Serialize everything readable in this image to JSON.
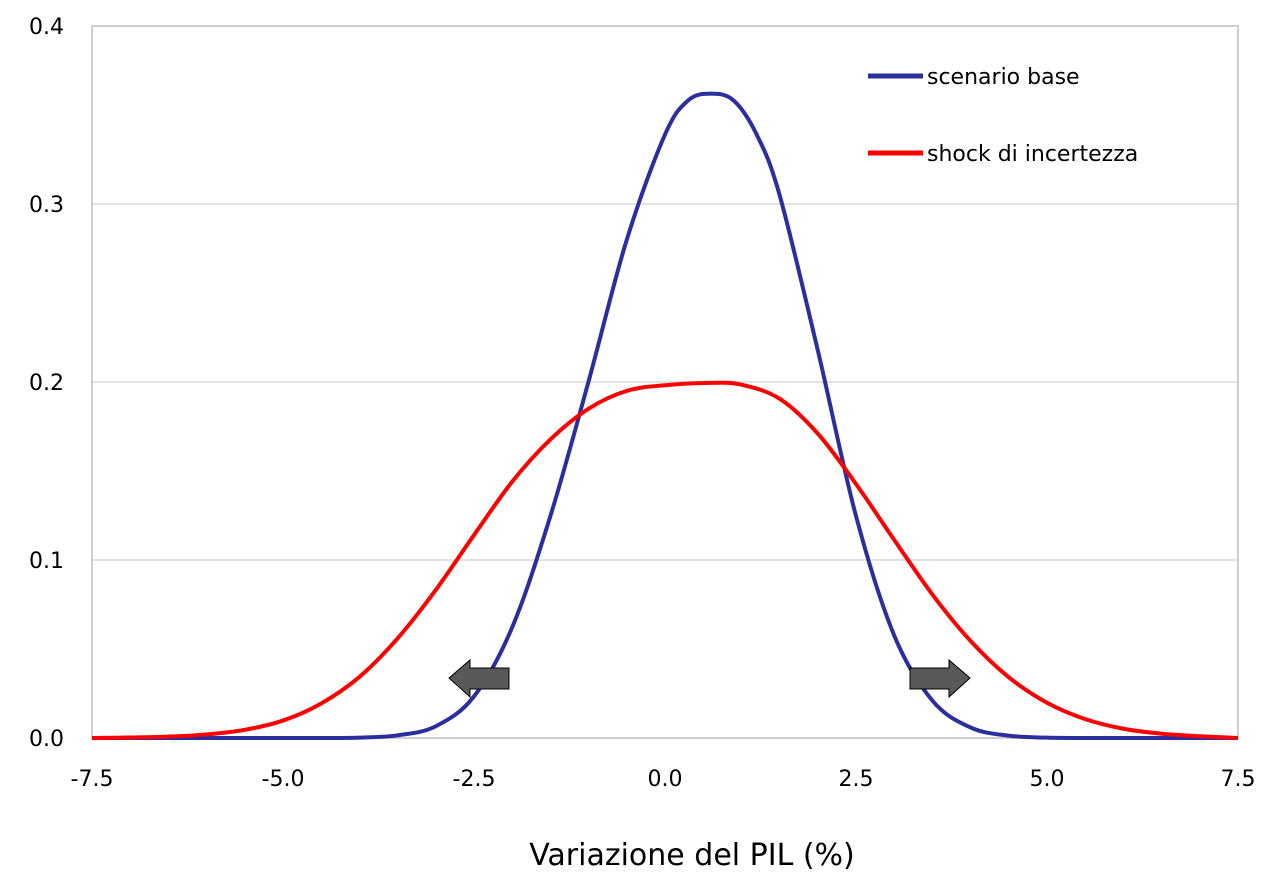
{
  "chart_data": {
    "type": "line",
    "xlabel": "Variazione del PIL (%)",
    "ylabel": "",
    "xlim": [
      -7.5,
      7.5
    ],
    "ylim": [
      0.0,
      0.4
    ],
    "x_ticks": [
      "-7.5",
      "-5.0",
      "-2.5",
      "0.0",
      "2.5",
      "5.0",
      "7.5"
    ],
    "y_ticks": [
      "0.0",
      "0.1",
      "0.2",
      "0.3",
      "0.4"
    ],
    "grid": "horizontal",
    "legend_position": "top-right",
    "series": [
      {
        "name": "scenario base",
        "color": "#2b2f9e",
        "x": [
          -7.5,
          -7.0,
          -6.5,
          -6.0,
          -5.5,
          -5.0,
          -4.5,
          -4.0,
          -3.5,
          -3.0,
          -2.5,
          -2.0,
          -1.5,
          -1.0,
          -0.5,
          0.0,
          0.3,
          0.6,
          0.9,
          1.2,
          1.5,
          2.0,
          2.5,
          3.0,
          3.5,
          4.0,
          4.5,
          5.0,
          5.5,
          6.0,
          6.5,
          7.0,
          7.5
        ],
        "y": [
          0.0,
          0.0,
          0.0,
          0.0,
          0.0,
          0.0,
          0.0,
          0.0002,
          0.0015,
          0.0066,
          0.0234,
          0.0622,
          0.1247,
          0.2004,
          0.28,
          0.339,
          0.3581,
          0.362,
          0.3581,
          0.339,
          0.305,
          0.2178,
          0.1247,
          0.0576,
          0.021,
          0.0059,
          0.0013,
          0.0002,
          0.0,
          0.0,
          0.0,
          0.0,
          0.0
        ]
      },
      {
        "name": "shock di incertezza",
        "color": "#ff0000",
        "x": [
          -7.5,
          -7.0,
          -6.5,
          -6.0,
          -5.5,
          -5.0,
          -4.5,
          -4.0,
          -3.5,
          -3.0,
          -2.5,
          -2.0,
          -1.5,
          -1.0,
          -0.5,
          0.0,
          0.6,
          1.0,
          1.5,
          2.0,
          2.5,
          3.0,
          3.5,
          4.0,
          4.5,
          5.0,
          5.5,
          6.0,
          6.5,
          7.0,
          7.5
        ],
        "y": [
          0.0,
          0.0003,
          0.0008,
          0.002,
          0.0046,
          0.0098,
          0.0194,
          0.0343,
          0.056,
          0.0832,
          0.114,
          0.144,
          0.1677,
          0.185,
          0.195,
          0.1982,
          0.1995,
          0.1985,
          0.1906,
          0.171,
          0.1427,
          0.1113,
          0.0806,
          0.0545,
          0.0341,
          0.0198,
          0.0106,
          0.0052,
          0.0024,
          0.001,
          0.0
        ]
      }
    ]
  }
}
